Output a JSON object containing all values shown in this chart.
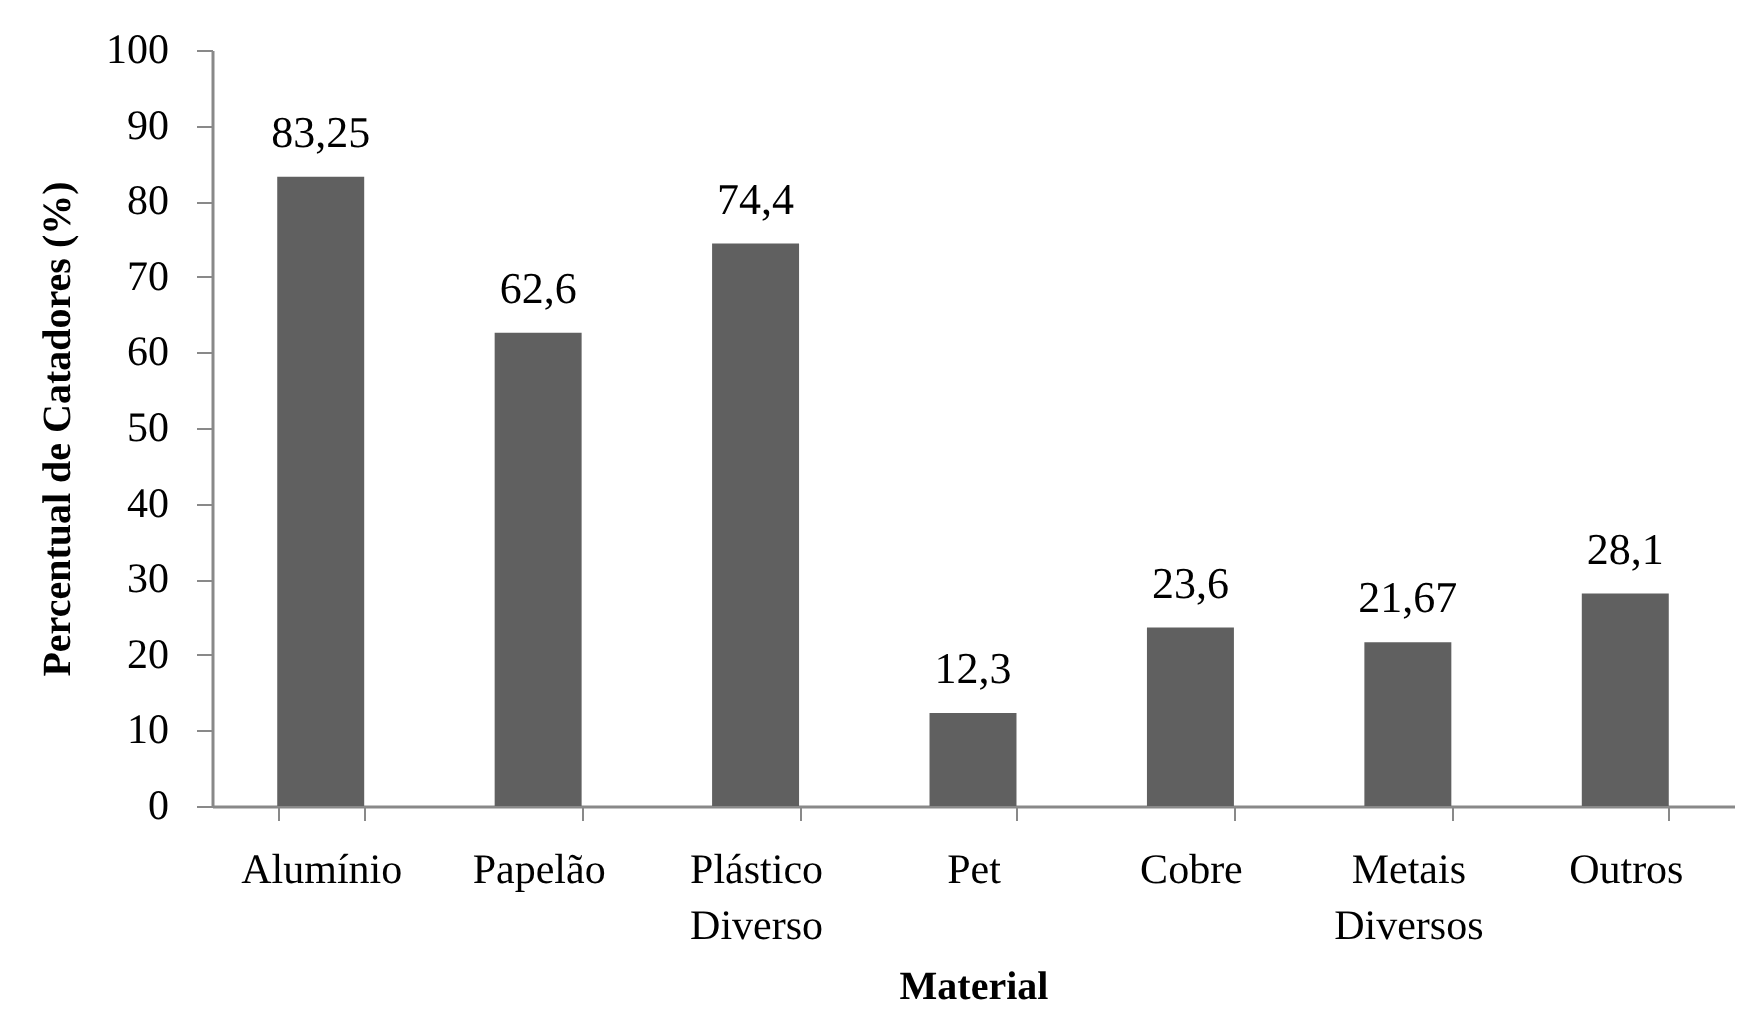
{
  "chart_data": {
    "type": "bar",
    "categories": [
      "Alumínio",
      "Papelão",
      "Plástico Diverso",
      "Pet",
      "Cobre",
      "Metais Diversos",
      "Outros"
    ],
    "values": [
      83.25,
      62.6,
      74.4,
      12.3,
      23.6,
      21.67,
      28.1
    ],
    "value_labels": [
      "83,25",
      "62,6",
      "74,4",
      "12,3",
      "23,6",
      "21,67",
      "28,1"
    ],
    "color": "#606060",
    "xlabel": "Material",
    "ylabel": "Percentual de Catadores (%)",
    "ylim": [
      0,
      100
    ],
    "yticks": [
      0,
      10,
      20,
      30,
      40,
      50,
      60,
      70,
      80,
      90,
      100
    ]
  }
}
